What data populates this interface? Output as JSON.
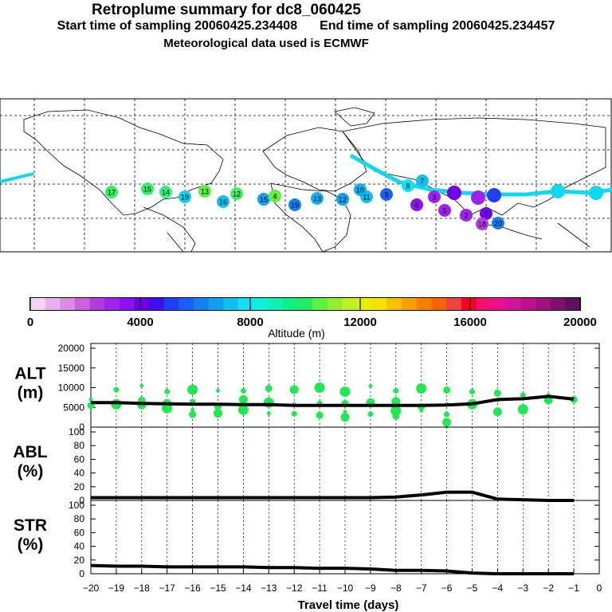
{
  "header": {
    "title": "Retroplume summary for dc8_060425",
    "start_label": "Start time of sampling 20060425.234408",
    "end_label": "End time of sampling 20060425.234457",
    "met_label": "Meteorological data used is ECMWF"
  },
  "map": {
    "labels": [
      "17",
      "15",
      "14",
      "19",
      "13",
      "12",
      "16",
      "15",
      "4",
      "19",
      "13",
      "12",
      "11",
      "10",
      "9",
      "8",
      "6",
      "5",
      "2",
      "1",
      "3",
      "7",
      "18",
      "20"
    ]
  },
  "colorbar": {
    "title": "Altitude (m)",
    "ticks": [
      "0",
      "4000",
      "8000",
      "12000",
      "16000",
      "20000"
    ],
    "colors": [
      "#f4d6f4",
      "#e8b0ec",
      "#dc8ce4",
      "#cc60dc",
      "#b838e0",
      "#a020f0",
      "#8c10f0",
      "#7000e8",
      "#3c10f0",
      "#2040f8",
      "#1860f8",
      "#1480f4",
      "#10a0f4",
      "#10c0f0",
      "#10e0f0",
      "#10f0e0",
      "#10f0b0",
      "#10f080",
      "#20f060",
      "#60f040",
      "#90f030",
      "#c0f020",
      "#e8f000",
      "#f8e000",
      "#f8c000",
      "#f8a000",
      "#f88000",
      "#f86000",
      "#f04040",
      "#f80020",
      "#f01070",
      "#e81090",
      "#d810a0",
      "#c01090",
      "#a01080",
      "#801070",
      "#601060"
    ]
  },
  "chart_data": [
    {
      "type": "line",
      "name": "ALT",
      "ylabel": "ALT (m)",
      "ylabel_lines": [
        "ALT",
        "(m)"
      ],
      "ylim": [
        0,
        20000
      ],
      "yticks": [
        "0",
        "5000",
        "10000",
        "15000",
        "20000"
      ],
      "x": [
        -20,
        -19,
        -18,
        -17,
        -16,
        -15,
        -14,
        -13,
        -12,
        -11,
        -10,
        -9,
        -8,
        -7,
        -6,
        -5,
        -4,
        -3,
        -2,
        -1
      ],
      "values": [
        6200,
        6200,
        6000,
        5900,
        5800,
        5800,
        5700,
        5700,
        5500,
        5500,
        5500,
        5500,
        5500,
        5500,
        5600,
        5900,
        7000,
        7200,
        7800,
        7100
      ],
      "scatter": [
        [
          -20,
          7000
        ],
        [
          -20,
          5500
        ],
        [
          -19,
          5800
        ],
        [
          -19,
          9500
        ],
        [
          -18,
          5600
        ],
        [
          -18,
          10500
        ],
        [
          -18,
          6800
        ],
        [
          -17,
          4800
        ],
        [
          -17,
          9000
        ],
        [
          -17,
          6000
        ],
        [
          -16,
          4400
        ],
        [
          -16,
          3200
        ],
        [
          -16,
          9500
        ],
        [
          -16,
          6500
        ],
        [
          -15,
          3500
        ],
        [
          -15,
          9200
        ],
        [
          -15,
          5200
        ],
        [
          -14,
          4400
        ],
        [
          -14,
          9200
        ],
        [
          -14,
          7000
        ],
        [
          -13,
          3500
        ],
        [
          -13,
          9800
        ],
        [
          -13,
          6200
        ],
        [
          -12,
          3400
        ],
        [
          -12,
          9500
        ],
        [
          -12,
          5800
        ],
        [
          -11,
          3000
        ],
        [
          -11,
          10000
        ],
        [
          -11,
          6000
        ],
        [
          -10,
          2500
        ],
        [
          -10,
          3900
        ],
        [
          -10,
          6000
        ],
        [
          -10,
          9000
        ],
        [
          -9,
          3300
        ],
        [
          -9,
          6200
        ],
        [
          -9,
          10400
        ],
        [
          -8,
          2800
        ],
        [
          -8,
          4200
        ],
        [
          -8,
          9200
        ],
        [
          -8,
          6500
        ],
        [
          -7,
          4200
        ],
        [
          -7,
          5200
        ],
        [
          -7,
          9800
        ],
        [
          -6,
          3200
        ],
        [
          -6,
          1200
        ],
        [
          -6,
          5800
        ],
        [
          -6,
          9400
        ],
        [
          -5,
          5800
        ],
        [
          -5,
          9000
        ],
        [
          -4,
          3900
        ],
        [
          -4,
          6800
        ],
        [
          -4,
          8600
        ],
        [
          -3,
          4500
        ],
        [
          -3,
          8100
        ],
        [
          -2,
          6900
        ],
        [
          -2,
          8100
        ],
        [
          -1,
          7000
        ]
      ]
    },
    {
      "type": "line",
      "name": "ABL",
      "ylabel": "ABL (%)",
      "ylabel_lines": [
        "ABL",
        "(%)"
      ],
      "ylim": [
        0,
        100
      ],
      "yticks": [
        "0",
        "20",
        "40",
        "60",
        "80",
        "100"
      ],
      "x": [
        -20,
        -19,
        -18,
        -17,
        -16,
        -15,
        -14,
        -13,
        -12,
        -11,
        -10,
        -9,
        -8,
        -7,
        -6,
        -5,
        -4,
        -3,
        -2,
        -1
      ],
      "values": [
        4,
        4,
        4,
        4,
        4,
        4,
        4,
        4,
        4,
        4,
        4,
        4,
        5,
        8,
        12,
        12,
        2,
        1,
        0,
        0
      ]
    },
    {
      "type": "line",
      "name": "STR",
      "ylabel": "STR (%)",
      "ylabel_lines": [
        "STR",
        "(%)"
      ],
      "ylim": [
        0,
        100
      ],
      "yticks": [
        "0",
        "20",
        "40",
        "60",
        "80",
        "100"
      ],
      "x": [
        -20,
        -19,
        -18,
        -17,
        -16,
        -15,
        -14,
        -13,
        -12,
        -11,
        -10,
        -9,
        -8,
        -7,
        -6,
        -5,
        -4,
        -3,
        -2,
        -1
      ],
      "values": [
        12,
        11,
        11,
        10,
        10,
        10,
        10,
        9,
        9,
        8,
        8,
        7,
        5,
        5,
        4,
        1,
        0,
        0,
        0,
        0
      ]
    }
  ],
  "xaxis": {
    "label": "Travel time (days)",
    "ticks": [
      "−20",
      "−19",
      "−18",
      "−17",
      "−16",
      "−15",
      "−14",
      "−13",
      "−12",
      "−11",
      "−10",
      "−9",
      "−8",
      "−7",
      "−6",
      "−5",
      "−4",
      "−3",
      "−2",
      "−1",
      "0"
    ]
  }
}
